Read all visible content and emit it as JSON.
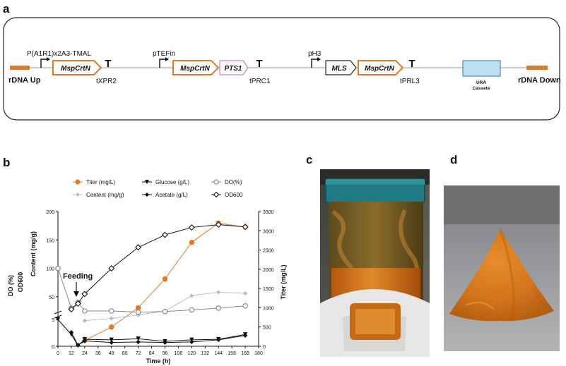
{
  "panel_a": {
    "label": "a",
    "rdna_up": "rDNA Up",
    "rdna_down": "rDNA Down",
    "ura_line1": "URA",
    "ura_line2": "Cassete",
    "promoter1": "P(A1R1)x2A3-TMAL",
    "promoter2": "pTEFin",
    "promoter3": "pH3",
    "gene1": "MspCrtN",
    "gene2": "MspCrtN",
    "gene3": "MLS",
    "gene4": "MspCrtN",
    "tag_pts1": "PTS1",
    "terminator1": "tXPR2",
    "terminator2": "tPRC1",
    "terminator3": "tPRL3",
    "terminator_glyph": "T"
  },
  "panel_b": {
    "label": "b"
  },
  "panel_c": {
    "label": "c"
  },
  "panel_d": {
    "label": "d"
  },
  "colors": {
    "orange": "#E07A2B",
    "pts1_border": "#C77BD6",
    "ura_fill": "#BFE0F3",
    "ura_border": "#3A6F9A",
    "content_grey": "#BDBDBD",
    "do_grey": "#8A8A8A",
    "dark": "#111111"
  },
  "chart_data": {
    "type": "line",
    "annotation": "Feeding",
    "xlabel": "Time (h)",
    "ylabel_left_top": "Content (mg/g)",
    "ylabel_left_bottom_1": "DO (%)",
    "ylabel_left_bottom_2": "OD600",
    "ylabel_right": "Titer (mg/L)",
    "xlim": [
      0,
      180
    ],
    "x_ticks": [
      0,
      12,
      24,
      36,
      48,
      60,
      72,
      84,
      96,
      108,
      120,
      132,
      144,
      156,
      168,
      180
    ],
    "left_ticks_upper": [
      50,
      100,
      150,
      200
    ],
    "left_ticks_lower": [
      0,
      5
    ],
    "right_ticks": [
      0,
      500,
      1000,
      1500,
      2000,
      2500,
      3000,
      3500
    ],
    "legend": [
      {
        "name": "Titer (mg/L)",
        "marker": "circle-filled",
        "color": "#E07A2B"
      },
      {
        "name": "Glucose (g/L)",
        "marker": "triangle-down",
        "color": "#111111"
      },
      {
        "name": "DO(%)",
        "marker": "circle-open",
        "color": "#8A8A8A"
      },
      {
        "name": "Content (mg/g)",
        "marker": "diamond-filled",
        "color": "#BDBDBD"
      },
      {
        "name": "Acetate (g/L)",
        "marker": "diamond-filled",
        "color": "#111111"
      },
      {
        "name": "OD600",
        "marker": "diamond-open",
        "color": "#111111"
      }
    ],
    "series": [
      {
        "name": "Titer (mg/L)",
        "axis": "right",
        "x": [
          24,
          48,
          72,
          96,
          120,
          144,
          168
        ],
        "y": [
          150,
          500,
          1000,
          1750,
          2700,
          3200,
          3100
        ]
      },
      {
        "name": "Content (mg/g)",
        "axis": "left_upper",
        "x": [
          24,
          48,
          72,
          96,
          120,
          144,
          168
        ],
        "y": [
          8,
          12,
          18,
          25,
          52,
          58,
          56
        ]
      },
      {
        "name": "DO(%)",
        "axis": "left_upper",
        "x": [
          0,
          12,
          18,
          24,
          48,
          72,
          96,
          120,
          144,
          168
        ],
        "y": [
          100,
          30,
          40,
          25,
          25,
          23,
          24,
          27,
          30,
          34
        ]
      },
      {
        "name": "OD600",
        "axis": "left_upper",
        "x": [
          12,
          18,
          24,
          48,
          72,
          96,
          120,
          144,
          168
        ],
        "y": [
          28,
          38,
          55,
          100,
          137,
          159,
          172,
          177,
          173
        ]
      },
      {
        "name": "Glucose (g/L)",
        "axis": "left_lower",
        "x": [
          0,
          12,
          18,
          24,
          48,
          72,
          96,
          120,
          144,
          168
        ],
        "y": [
          5,
          2.2,
          0.1,
          1.3,
          1.2,
          1.4,
          0.9,
          1.2,
          1.3,
          2.2
        ]
      },
      {
        "name": "Acetate (g/L)",
        "axis": "left_lower",
        "x": [
          12,
          18,
          24,
          48,
          72,
          96,
          120,
          144,
          168
        ],
        "y": [
          2.6,
          0.2,
          1.0,
          0.7,
          0.8,
          0.7,
          0.8,
          1.2,
          2.0
        ]
      }
    ]
  }
}
